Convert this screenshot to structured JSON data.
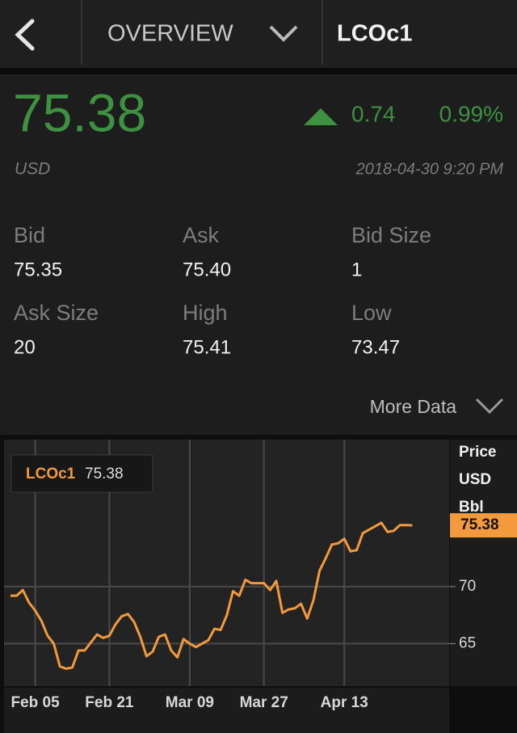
{
  "header": {
    "section": "OVERVIEW",
    "symbol": "LCOc1"
  },
  "quote": {
    "last": "75.38",
    "currency": "USD",
    "change": "0.74",
    "change_pct": "0.99%",
    "timestamp": "2018-04-30 9:20 PM",
    "stats": [
      {
        "label": "Bid",
        "value": "75.35"
      },
      {
        "label": "Ask",
        "value": "75.40"
      },
      {
        "label": "Bid Size",
        "value": "1"
      },
      {
        "label": "Ask Size",
        "value": "20"
      },
      {
        "label": "High",
        "value": "75.41"
      },
      {
        "label": "Low",
        "value": "73.47"
      }
    ],
    "more": "More Data"
  },
  "chart_data": {
    "type": "line",
    "y_label": [
      "Price",
      "USD",
      "Bbl"
    ],
    "series": [
      {
        "name": "LCOc1",
        "color": "#f39a3d",
        "values": [
          69.2,
          69.2,
          69.7,
          68.6,
          67.9,
          67.0,
          65.7,
          65.0,
          63.0,
          62.8,
          62.9,
          64.4,
          64.4,
          65.1,
          65.8,
          65.5,
          65.7,
          66.7,
          67.4,
          67.6,
          66.9,
          65.6,
          63.9,
          64.3,
          65.6,
          65.8,
          64.4,
          63.8,
          65.4,
          65.0,
          64.7,
          65.0,
          65.3,
          66.3,
          66.2,
          67.5,
          69.6,
          69.2,
          70.6,
          70.3,
          70.3,
          70.3,
          69.7,
          70.5,
          67.7,
          68.0,
          68.1,
          68.5,
          67.2,
          68.8,
          71.4,
          72.5,
          73.7,
          73.8,
          74.2,
          73.1,
          73.2,
          74.7,
          75.0,
          75.3,
          75.6,
          74.8,
          74.9,
          75.4,
          75.4,
          75.38
        ]
      }
    ],
    "xlim": [
      -1.04,
      70.96
    ],
    "xticks": [
      {
        "value": 4,
        "label": "Feb 05"
      },
      {
        "value": 16,
        "label": "Feb 21"
      },
      {
        "value": 29,
        "label": "Mar 09"
      },
      {
        "value": 41,
        "label": "Mar 27"
      },
      {
        "value": 54,
        "label": "Apr 13"
      }
    ],
    "ylim": [
      61.27,
      82.9
    ],
    "yticks": [
      65,
      70
    ],
    "grid": true
  }
}
